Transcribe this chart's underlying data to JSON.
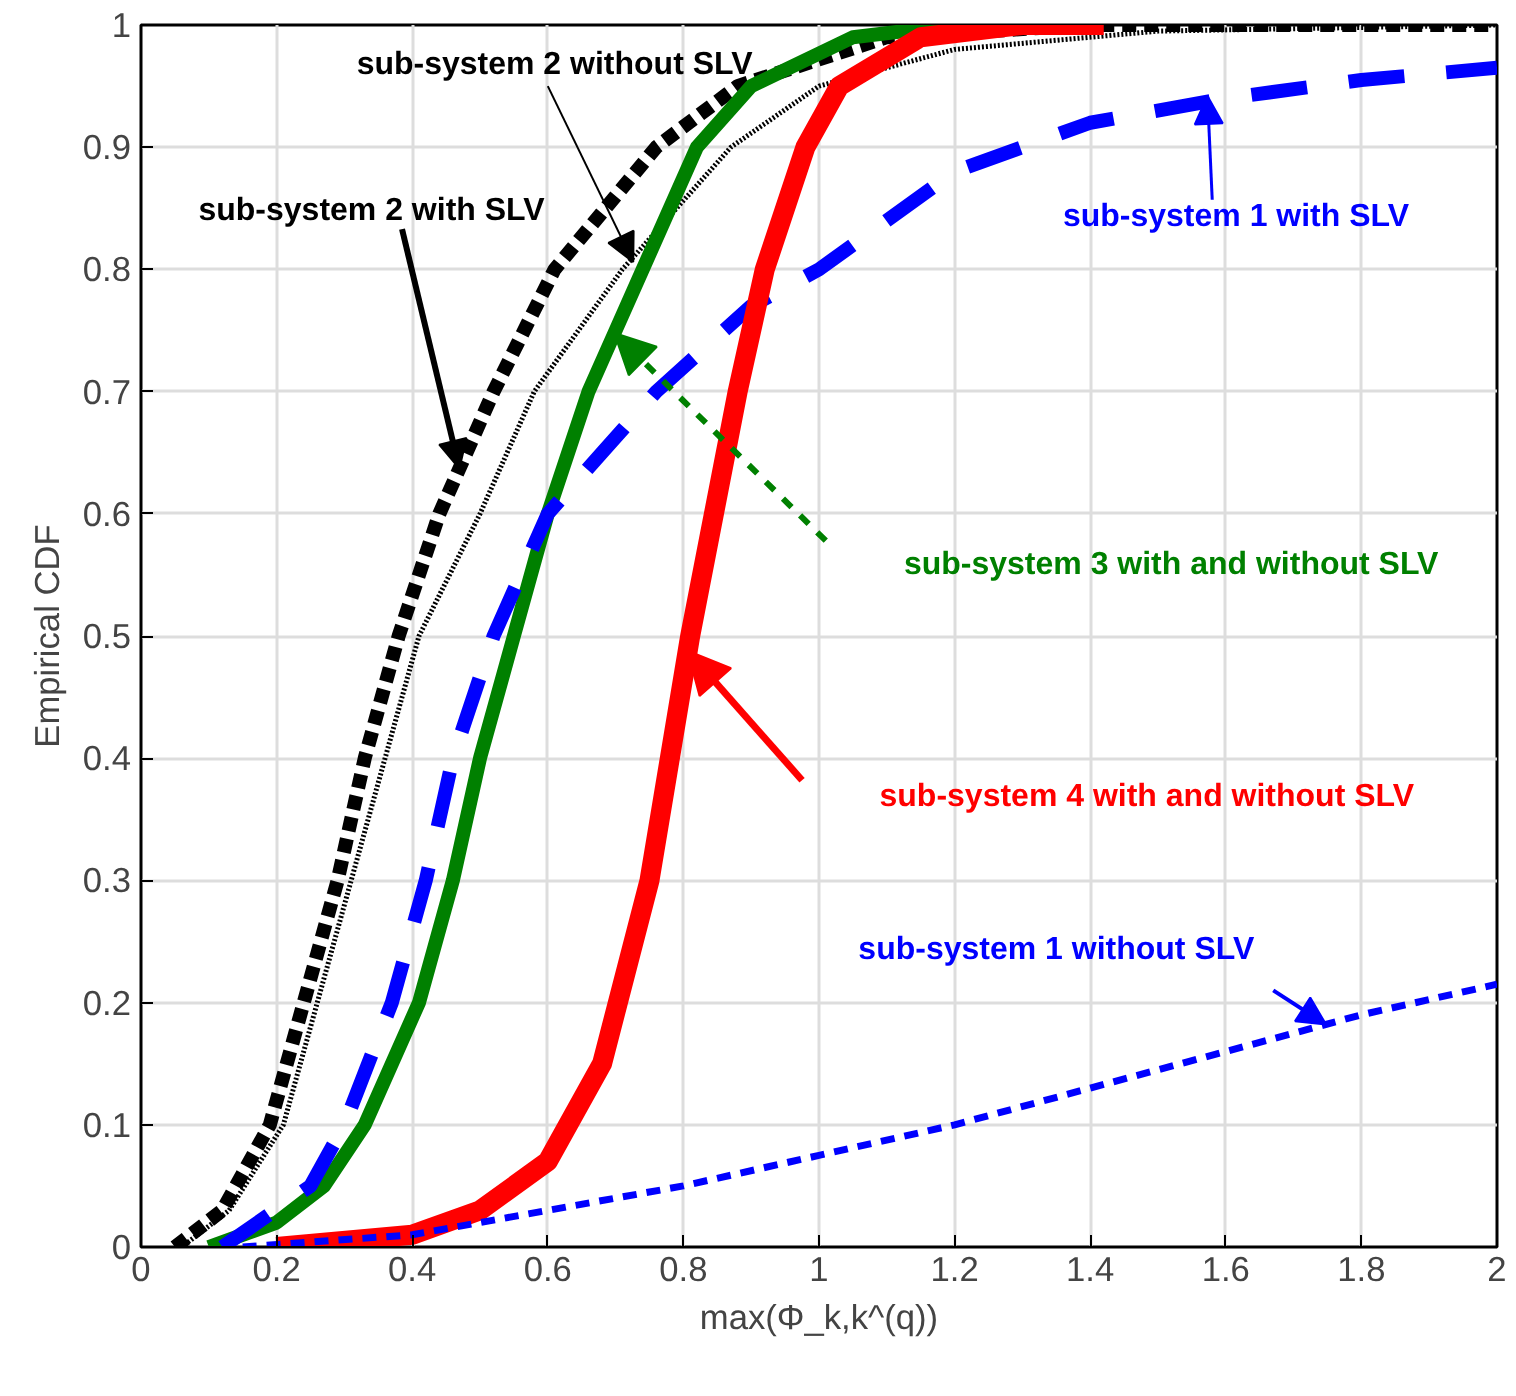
{
  "chart_data": {
    "type": "line",
    "xlabel": "max(Φ_k,k^(q))",
    "ylabel": "Empirical CDF",
    "xlim": [
      0,
      2
    ],
    "ylim": [
      0,
      1
    ],
    "xticks": [
      0,
      0.2,
      0.4,
      0.6,
      0.8,
      1,
      1.2,
      1.4,
      1.6,
      1.8,
      2
    ],
    "yticks": [
      0,
      0.1,
      0.2,
      0.3,
      0.4,
      0.5,
      0.6,
      0.7,
      0.8,
      0.9,
      1
    ],
    "grid": true,
    "series": [
      {
        "color": "#000000",
        "line_style": "dotted",
        "x": [
          0.05,
          0.12,
          0.19,
          0.24,
          0.29,
          0.33,
          0.38,
          0.44,
          0.52,
          0.61,
          0.76,
          0.88,
          1.1,
          1.4,
          2.0
        ],
        "values": [
          0,
          0.03,
          0.1,
          0.2,
          0.3,
          0.4,
          0.5,
          0.6,
          0.7,
          0.8,
          0.9,
          0.95,
          0.99,
          1,
          1
        ]
      },
      {
        "color": "#000000",
        "line_style": "dotted",
        "x": [
          0.06,
          0.13,
          0.21,
          0.26,
          0.31,
          0.36,
          0.41,
          0.5,
          0.58,
          0.71,
          0.87,
          1.0,
          1.2,
          1.5,
          2.0
        ],
        "values": [
          0,
          0.03,
          0.1,
          0.2,
          0.3,
          0.4,
          0.5,
          0.6,
          0.7,
          0.8,
          0.9,
          0.95,
          0.98,
          0.995,
          1
        ]
      },
      {
        "color": "#008000",
        "line_style": "solid",
        "x": [
          0.1,
          0.2,
          0.27,
          0.33,
          0.41,
          0.46,
          0.5,
          0.55,
          0.6,
          0.66,
          0.7,
          0.74,
          0.82,
          0.9,
          1.05,
          1.2
        ],
        "values": [
          0,
          0.02,
          0.05,
          0.1,
          0.2,
          0.3,
          0.4,
          0.5,
          0.6,
          0.7,
          0.75,
          0.8,
          0.9,
          0.95,
          0.99,
          1
        ]
      },
      {
        "color": "#0000ff",
        "line_style": "dashed",
        "x": [
          0.12,
          0.25,
          0.3,
          0.37,
          0.42,
          0.46,
          0.52,
          0.6,
          0.68,
          0.76,
          0.9,
          1.0,
          1.2,
          1.4,
          1.6,
          1.8,
          2.0
        ],
        "values": [
          0,
          0.05,
          0.1,
          0.2,
          0.3,
          0.4,
          0.5,
          0.6,
          0.65,
          0.7,
          0.77,
          0.8,
          0.88,
          0.92,
          0.94,
          0.955,
          0.965
        ]
      },
      {
        "color": "#ff0000",
        "line_style": "solid",
        "x": [
          0.2,
          0.4,
          0.5,
          0.6,
          0.68,
          0.75,
          0.81,
          0.88,
          0.92,
          0.98,
          1.03,
          1.15,
          1.3,
          1.42
        ],
        "values": [
          0,
          0.01,
          0.03,
          0.07,
          0.15,
          0.3,
          0.5,
          0.7,
          0.8,
          0.9,
          0.95,
          0.99,
          1,
          1
        ]
      },
      {
        "color": "#0000ff",
        "line_style": "dashed",
        "x": [
          0.15,
          0.4,
          0.6,
          0.8,
          1.0,
          1.2,
          1.4,
          1.6,
          1.8,
          2.0
        ],
        "values": [
          0,
          0.01,
          0.03,
          0.05,
          0.075,
          0.1,
          0.13,
          0.16,
          0.19,
          0.215
        ]
      }
    ],
    "annotations": [
      {
        "text": "sub-system 2 without SLV",
        "x": 0.726,
        "y": 0.806
      },
      {
        "text": "sub-system 2 with SLV",
        "x": 0.4696,
        "y": 0.637
      },
      {
        "text": "sub-system 1 with SLV",
        "x": 1.573,
        "y": 0.942
      },
      "sub-system 3  with and without SLV",
      "sub-system 4  with and without SLV",
      {
        "text": "sub-system 1 without SLV",
        "x": 1.748,
        "y": 0.182
      }
    ]
  }
}
